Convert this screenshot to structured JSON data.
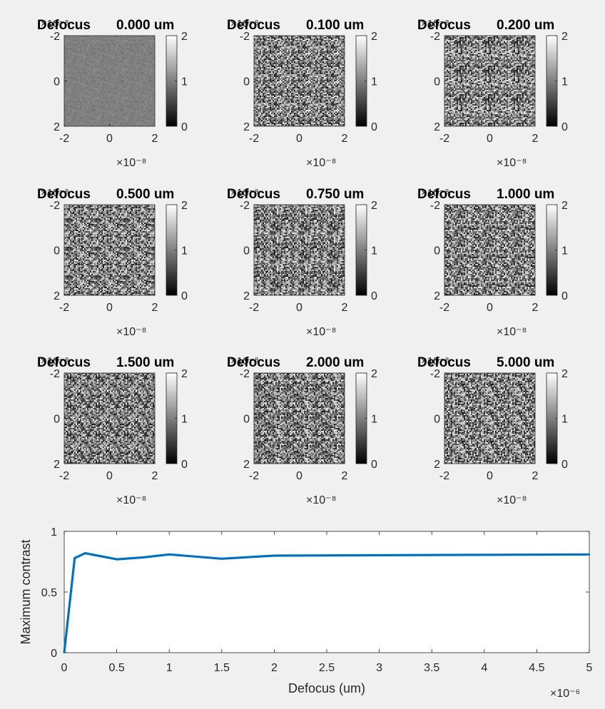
{
  "figure": {
    "background": "#f0f0f0"
  },
  "panel_title_prefix": "Defocus",
  "panel_exponent_label": "×10⁻⁸",
  "colorbar": {
    "ticks": [
      "0",
      "1",
      "2"
    ],
    "colormap": "gray"
  },
  "panel_axis": {
    "ticks": [
      "-2",
      "0",
      "2"
    ],
    "exponent": "-8"
  },
  "chart_data": [
    {
      "type": "heatmap",
      "title": "Defocus 0.000 um",
      "defocus_label": "0.000 um",
      "x_ticks": [
        "-2",
        "0",
        "2"
      ],
      "y_ticks": [
        "-2",
        "0",
        "2"
      ],
      "xlim": [
        -2e-08,
        2e-08
      ],
      "ylim": [
        -2e-08,
        2e-08
      ],
      "axis_exponent": "×10⁻⁸",
      "colorbar_ticks": [
        "0",
        "1",
        "2"
      ],
      "clim": [
        0,
        2
      ],
      "colormap": "gray",
      "texture": {
        "mean": 1.0,
        "spread": 0.08
      }
    },
    {
      "type": "heatmap",
      "title": "Defocus 0.100 um",
      "defocus_label": "0.100 um",
      "x_ticks": [
        "-2",
        "0",
        "2"
      ],
      "y_ticks": [
        "-2",
        "0",
        "2"
      ],
      "xlim": [
        -2e-08,
        2e-08
      ],
      "ylim": [
        -2e-08,
        2e-08
      ],
      "axis_exponent": "×10⁻⁸",
      "colorbar_ticks": [
        "0",
        "1",
        "2"
      ],
      "clim": [
        0,
        2
      ],
      "colormap": "gray",
      "texture": {
        "mean": 1.0,
        "spread": 0.8
      }
    },
    {
      "type": "heatmap",
      "title": "Defocus 0.200 um",
      "defocus_label": "0.200 um",
      "x_ticks": [
        "-2",
        "0",
        "2"
      ],
      "y_ticks": [
        "-2",
        "0",
        "2"
      ],
      "xlim": [
        -2e-08,
        2e-08
      ],
      "ylim": [
        -2e-08,
        2e-08
      ],
      "axis_exponent": "×10⁻⁸",
      "colorbar_ticks": [
        "0",
        "1",
        "2"
      ],
      "clim": [
        0,
        2
      ],
      "colormap": "gray",
      "texture": {
        "mean": 1.0,
        "spread": 0.82
      }
    },
    {
      "type": "heatmap",
      "title": "Defocus 0.500 um",
      "defocus_label": "0.500 um",
      "x_ticks": [
        "-2",
        "0",
        "2"
      ],
      "y_ticks": [
        "-2",
        "0",
        "2"
      ],
      "xlim": [
        -2e-08,
        2e-08
      ],
      "ylim": [
        -2e-08,
        2e-08
      ],
      "axis_exponent": "×10⁻⁸",
      "colorbar_ticks": [
        "0",
        "1",
        "2"
      ],
      "clim": [
        0,
        2
      ],
      "colormap": "gray",
      "texture": {
        "mean": 1.0,
        "spread": 0.77
      }
    },
    {
      "type": "heatmap",
      "title": "Defocus 0.750 um",
      "defocus_label": "0.750 um",
      "x_ticks": [
        "-2",
        "0",
        "2"
      ],
      "y_ticks": [
        "-2",
        "0",
        "2"
      ],
      "xlim": [
        -2e-08,
        2e-08
      ],
      "ylim": [
        -2e-08,
        2e-08
      ],
      "axis_exponent": "×10⁻⁸",
      "colorbar_ticks": [
        "0",
        "1",
        "2"
      ],
      "clim": [
        0,
        2
      ],
      "colormap": "gray",
      "texture": {
        "mean": 1.0,
        "spread": 0.79
      }
    },
    {
      "type": "heatmap",
      "title": "Defocus 1.000 um",
      "defocus_label": "1.000 um",
      "x_ticks": [
        "-2",
        "0",
        "2"
      ],
      "y_ticks": [
        "-2",
        "0",
        "2"
      ],
      "xlim": [
        -2e-08,
        2e-08
      ],
      "ylim": [
        -2e-08,
        2e-08
      ],
      "axis_exponent": "×10⁻⁸",
      "colorbar_ticks": [
        "0",
        "1",
        "2"
      ],
      "clim": [
        0,
        2
      ],
      "colormap": "gray",
      "texture": {
        "mean": 1.0,
        "spread": 0.81
      }
    },
    {
      "type": "heatmap",
      "title": "Defocus 1.500 um",
      "defocus_label": "1.500 um",
      "x_ticks": [
        "-2",
        "0",
        "2"
      ],
      "y_ticks": [
        "-2",
        "0",
        "2"
      ],
      "xlim": [
        -2e-08,
        2e-08
      ],
      "ylim": [
        -2e-08,
        2e-08
      ],
      "axis_exponent": "×10⁻⁸",
      "colorbar_ticks": [
        "0",
        "1",
        "2"
      ],
      "clim": [
        0,
        2
      ],
      "colormap": "gray",
      "texture": {
        "mean": 1.0,
        "spread": 0.78
      }
    },
    {
      "type": "heatmap",
      "title": "Defocus 2.000 um",
      "defocus_label": "2.000 um",
      "x_ticks": [
        "-2",
        "0",
        "2"
      ],
      "y_ticks": [
        "-2",
        "0",
        "2"
      ],
      "xlim": [
        -2e-08,
        2e-08
      ],
      "ylim": [
        -2e-08,
        2e-08
      ],
      "axis_exponent": "×10⁻⁸",
      "colorbar_ticks": [
        "0",
        "1",
        "2"
      ],
      "clim": [
        0,
        2
      ],
      "colormap": "gray",
      "texture": {
        "mean": 1.0,
        "spread": 0.8
      }
    },
    {
      "type": "heatmap",
      "title": "Defocus 5.000 um",
      "defocus_label": "5.000 um",
      "x_ticks": [
        "-2",
        "0",
        "2"
      ],
      "y_ticks": [
        "-2",
        "0",
        "2"
      ],
      "xlim": [
        -2e-08,
        2e-08
      ],
      "ylim": [
        -2e-08,
        2e-08
      ],
      "axis_exponent": "×10⁻⁸",
      "colorbar_ticks": [
        "0",
        "1",
        "2"
      ],
      "clim": [
        0,
        2
      ],
      "colormap": "gray",
      "texture": {
        "mean": 1.0,
        "spread": 0.82
      }
    },
    {
      "type": "line",
      "title": "",
      "xlabel": "Defocus (um)",
      "ylabel": "Maximum contrast",
      "xlim": [
        0,
        5e-06
      ],
      "ylim": [
        0,
        1
      ],
      "x_ticks": [
        "0",
        "0.5",
        "1",
        "1.5",
        "2",
        "2.5",
        "3",
        "3.5",
        "4",
        "4.5",
        "5"
      ],
      "y_ticks": [
        "0",
        "0.5",
        "1"
      ],
      "axis_exponent": "×10⁻⁶",
      "grid": false,
      "series": [
        {
          "color": "#0072bd",
          "x": [
            0,
            1e-07,
            2e-07,
            5e-07,
            7.5e-07,
            1e-06,
            1.5e-06,
            2e-06,
            5e-06
          ],
          "y": [
            0,
            0.78,
            0.82,
            0.77,
            0.785,
            0.81,
            0.775,
            0.8,
            0.81
          ]
        }
      ]
    }
  ]
}
